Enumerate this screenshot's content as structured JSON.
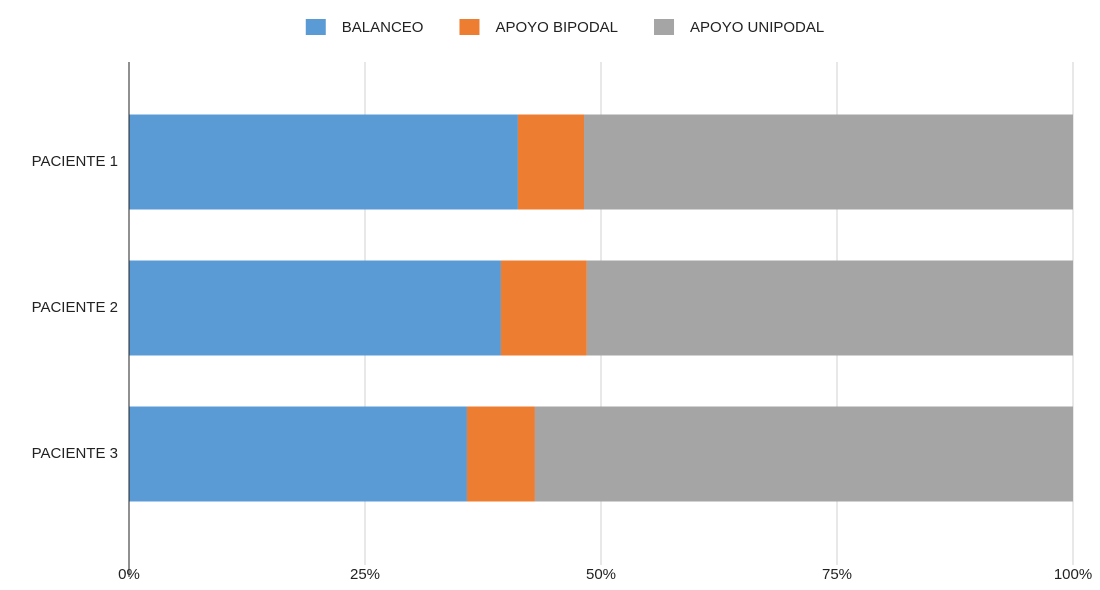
{
  "chart_data": {
    "type": "bar",
    "orientation": "horizontal",
    "stacked": true,
    "categories": [
      "PACIENTE 1",
      "PACIENTE 2",
      "PACIENTE 3"
    ],
    "series": [
      {
        "name": "BALANCEO",
        "color": "#5b9bd5",
        "values": [
          41.2,
          39.4,
          35.8
        ]
      },
      {
        "name": "APOYO BIPODAL",
        "color": "#ed7d31",
        "values": [
          7.0,
          9.1,
          7.2
        ]
      },
      {
        "name": "APOYO UNIPODAL",
        "color": "#a5a5a5",
        "values": [
          51.8,
          51.5,
          57.0
        ]
      }
    ],
    "xlim": [
      0,
      100
    ],
    "xticks": [
      {
        "value": 0,
        "label": "0%"
      },
      {
        "value": 25,
        "label": "25%"
      },
      {
        "value": 50,
        "label": "50%"
      },
      {
        "value": 75,
        "label": "75%"
      },
      {
        "value": 100,
        "label": "100%"
      }
    ],
    "grid": true,
    "legend": "top"
  }
}
